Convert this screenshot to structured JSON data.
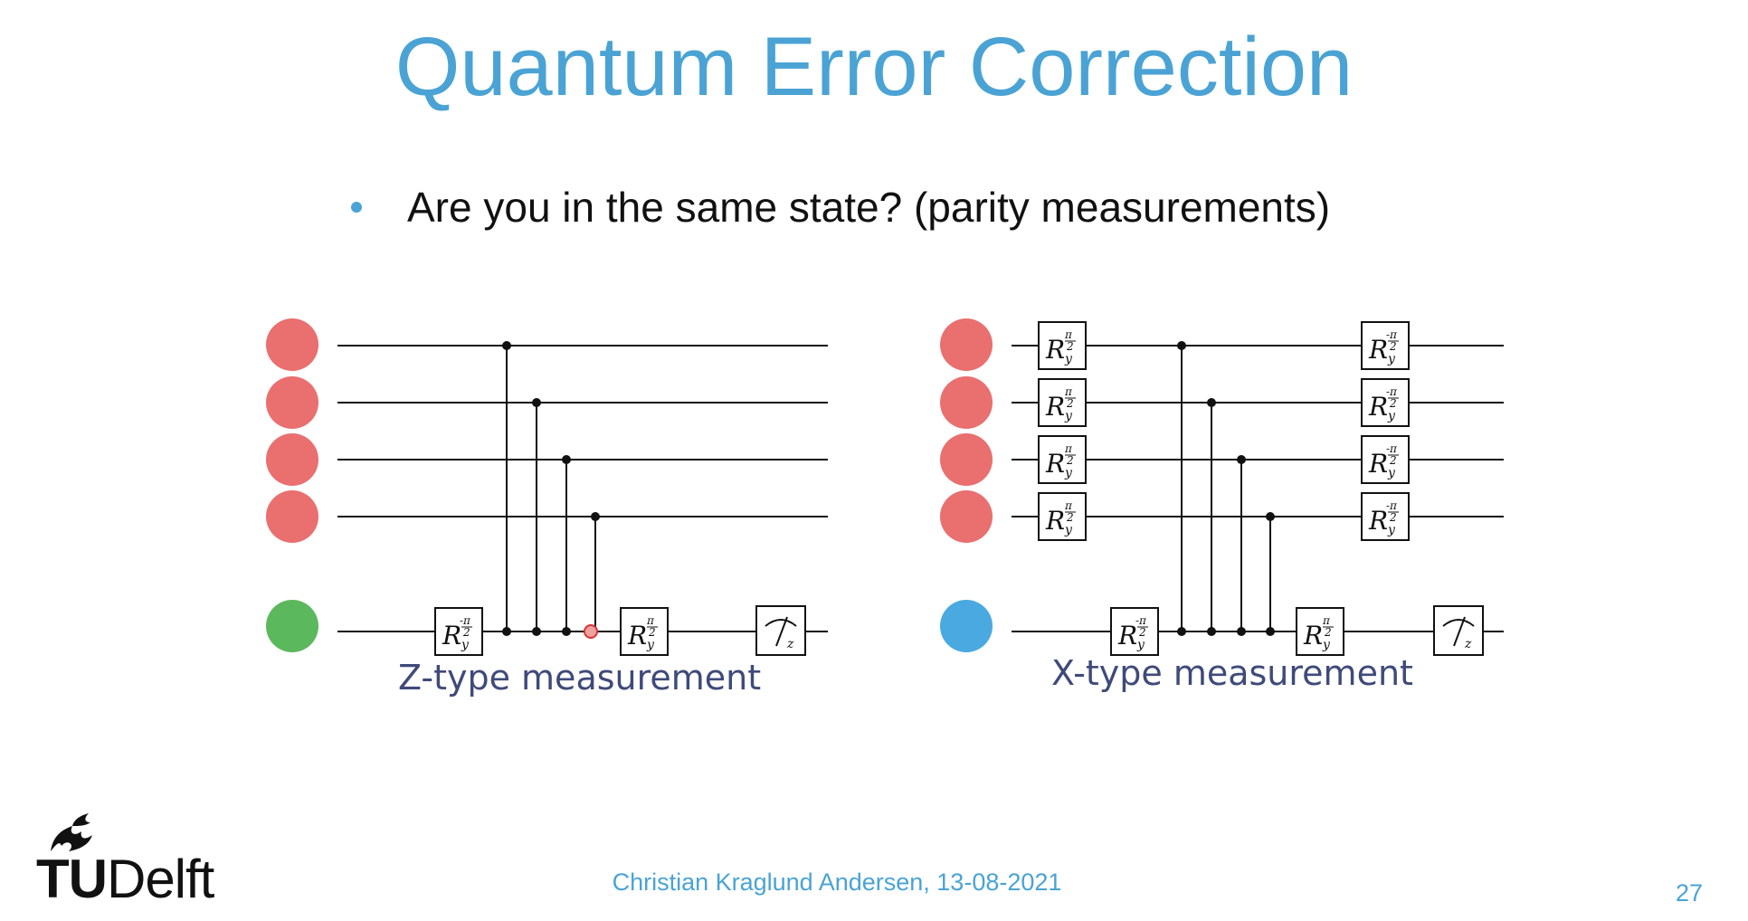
{
  "slide": {
    "title": "Quantum Error Correction",
    "bullet": "Are you in the same state? (parity measurements)",
    "author_date": "Christian Kraglund Andersen, 13-08-2021",
    "page_number": "27"
  },
  "logo": {
    "text_bold": "TU",
    "text_regular": "Delft",
    "icon": "flame-icon"
  },
  "circuits": {
    "z_type": {
      "caption": "Z-type measurement",
      "data_qubit_color": "#ea6f6f",
      "ancilla_color": "#5cb85c",
      "pre_gate": "R",
      "pre_gate_sub": "y",
      "pre_gate_sup": "-π/2",
      "post_gate_sup": "π/2",
      "measure_basis": "z"
    },
    "x_type": {
      "caption": "X-type measurement",
      "data_qubit_color": "#ea6f6f",
      "ancilla_color": "#4aa9e0",
      "measure_basis": "z"
    }
  },
  "colors": {
    "accent": "#4aa3d4",
    "caption": "#3f4a7a"
  }
}
